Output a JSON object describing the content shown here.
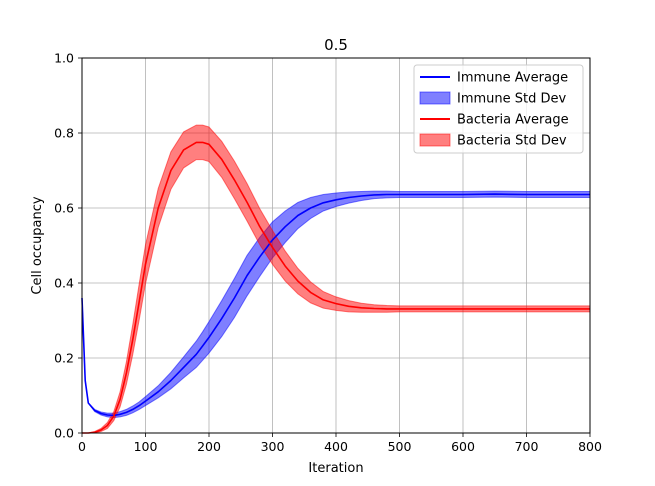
{
  "chart_data": {
    "type": "line",
    "title": "0.5",
    "xlabel": "Iteration",
    "ylabel": "Cell occupancy",
    "xlim": [
      0,
      800
    ],
    "ylim": [
      0.0,
      1.0
    ],
    "xticks": [
      "0",
      "100",
      "200",
      "300",
      "400",
      "500",
      "600",
      "700",
      "800"
    ],
    "yticks": [
      "0.0",
      "0.2",
      "0.4",
      "0.6",
      "0.8",
      "1.0"
    ],
    "grid": true,
    "legend_position": "top-right",
    "x": [
      0,
      5,
      10,
      20,
      30,
      40,
      50,
      60,
      70,
      80,
      90,
      100,
      120,
      140,
      160,
      180,
      190,
      200,
      220,
      240,
      260,
      280,
      300,
      320,
      340,
      360,
      380,
      400,
      420,
      440,
      460,
      480,
      500,
      550,
      600,
      650,
      700,
      750,
      800
    ],
    "series": [
      {
        "name": "Immune Average",
        "legend_label": "Immune Average",
        "color": "#0000ff",
        "values": [
          0.36,
          0.14,
          0.08,
          0.06,
          0.052,
          0.048,
          0.047,
          0.05,
          0.055,
          0.063,
          0.073,
          0.085,
          0.11,
          0.14,
          0.175,
          0.21,
          0.232,
          0.255,
          0.305,
          0.36,
          0.42,
          0.47,
          0.515,
          0.55,
          0.58,
          0.6,
          0.614,
          0.622,
          0.628,
          0.632,
          0.635,
          0.636,
          0.636,
          0.636,
          0.636,
          0.637,
          0.636,
          0.636,
          0.636
        ],
        "std": [
          0,
          0,
          0,
          0.003,
          0.004,
          0.005,
          0.006,
          0.007,
          0.008,
          0.009,
          0.01,
          0.012,
          0.016,
          0.022,
          0.028,
          0.035,
          0.038,
          0.042,
          0.048,
          0.052,
          0.054,
          0.052,
          0.048,
          0.042,
          0.035,
          0.028,
          0.022,
          0.018,
          0.015,
          0.012,
          0.01,
          0.009,
          0.008,
          0.008,
          0.008,
          0.008,
          0.008,
          0.008,
          0.008
        ]
      },
      {
        "name": "Bacteria Average",
        "legend_label": "Bacteria Average",
        "color": "#ff0000",
        "values": [
          0.0,
          0.0,
          0.0,
          0.002,
          0.008,
          0.02,
          0.045,
          0.09,
          0.16,
          0.25,
          0.35,
          0.45,
          0.6,
          0.7,
          0.755,
          0.775,
          0.775,
          0.77,
          0.73,
          0.675,
          0.615,
          0.55,
          0.495,
          0.445,
          0.405,
          0.375,
          0.355,
          0.345,
          0.338,
          0.334,
          0.332,
          0.331,
          0.331,
          0.331,
          0.331,
          0.331,
          0.331,
          0.331,
          0.331
        ],
        "std": [
          0,
          0,
          0,
          0.002,
          0.004,
          0.008,
          0.012,
          0.02,
          0.03,
          0.04,
          0.048,
          0.052,
          0.052,
          0.05,
          0.048,
          0.046,
          0.046,
          0.046,
          0.048,
          0.05,
          0.05,
          0.048,
          0.045,
          0.04,
          0.034,
          0.028,
          0.022,
          0.018,
          0.015,
          0.012,
          0.01,
          0.009,
          0.008,
          0.008,
          0.008,
          0.008,
          0.008,
          0.008,
          0.008
        ]
      }
    ],
    "bands": [
      {
        "name": "Immune Std Dev",
        "legend_label": "Immune Std Dev",
        "color": "#0000ff",
        "of_series": "Immune Average"
      },
      {
        "name": "Bacteria Std Dev",
        "legend_label": "Bacteria Std Dev",
        "color": "#ff0000",
        "of_series": "Bacteria Average"
      }
    ]
  }
}
